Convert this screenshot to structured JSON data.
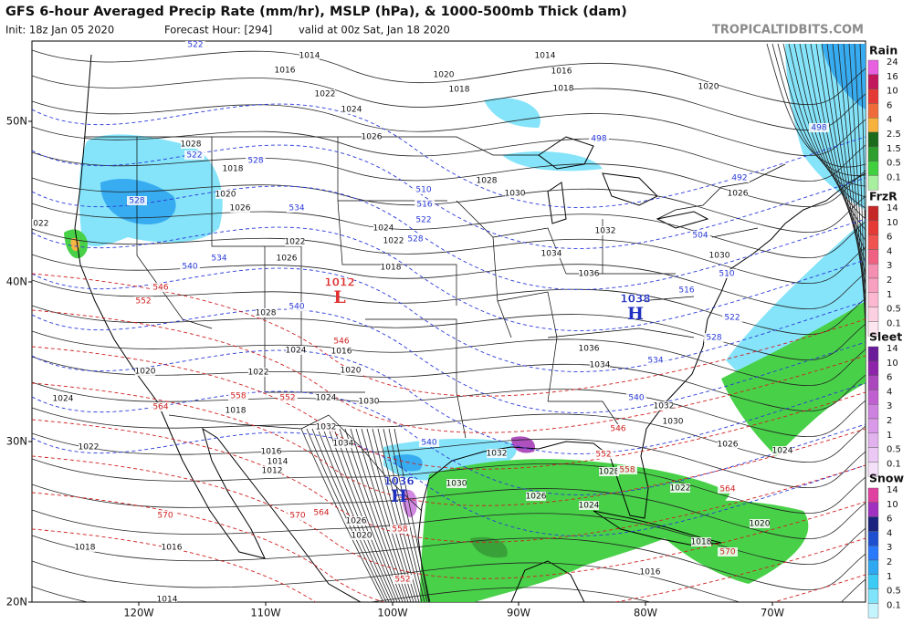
{
  "header": {
    "title": "GFS 6-hour Averaged Precip Rate (mm/hr), MSLP (hPa), & 1000-500mb Thick (dam)",
    "init": "Init: 18z Jan 05 2020",
    "forecast_hour": "Forecast Hour: [294]",
    "valid": "valid at 00z Sat, Jan 18 2020",
    "source": "TROPICALTIDBITS.COM"
  },
  "map": {
    "lat_labels": [
      "50N",
      "40N",
      "30N",
      "20N"
    ],
    "lon_labels": [
      "120W",
      "110W",
      "100W",
      "90W",
      "80W",
      "70W"
    ],
    "centers": [
      {
        "letter": "L",
        "value": "1012",
        "color": "#e03030"
      },
      {
        "letter": "H",
        "value": "1038",
        "color": "#2030c0"
      },
      {
        "letter": "H",
        "value": "1036",
        "color": "#2030c0"
      }
    ],
    "isobar_labels": [
      "1014",
      "1016",
      "1020",
      "1018",
      "1022",
      "1024",
      "1026",
      "1014",
      "1016",
      "1018",
      "1020",
      "1028",
      "1018",
      "1020",
      "1026",
      "1028",
      "1030",
      "1024",
      "1022",
      "1018",
      "1032",
      "1034",
      "1036",
      "1030",
      "1026",
      "1022",
      "1022",
      "1026",
      "1028",
      "1016",
      "1024",
      "1022",
      "1020",
      "1020",
      "1024",
      "1018",
      "1024",
      "1030",
      "1032",
      "1034",
      "1036",
      "1034",
      "1032",
      "1030",
      "1026",
      "1024",
      "1016",
      "1014",
      "1012",
      "1022",
      "1030",
      "1032",
      "1028",
      "1026",
      "1024",
      "1022",
      "1026",
      "1020",
      "1018",
      "1016",
      "1014",
      "1020",
      "1018",
      "1016"
    ],
    "cold_thickness_labels": [
      "522",
      "522",
      "528",
      "528",
      "534",
      "534",
      "540",
      "540",
      "510",
      "516",
      "522",
      "528",
      "498",
      "492",
      "498",
      "504",
      "510",
      "516",
      "522",
      "528",
      "534",
      "540",
      "540"
    ],
    "warm_thickness_labels": [
      "546",
      "552",
      "546",
      "552",
      "558",
      "564",
      "546",
      "552",
      "558",
      "564",
      "570",
      "570",
      "564",
      "558",
      "552",
      "570"
    ]
  },
  "legend": [
    {
      "title": "Rain",
      "levels": [
        "24",
        "16",
        "10",
        "6",
        "4",
        "2.5",
        "1.5",
        "0.5",
        "0.1"
      ],
      "colors": [
        "#e85fe0",
        "#c2185b",
        "#e53935",
        "#ef6c3a",
        "#f6b23a",
        "#1b6b1b",
        "#2e9e2e",
        "#3fcf3f",
        "#a8f0a0"
      ]
    },
    {
      "title": "FrzR",
      "levels": [
        "14",
        "10",
        "6",
        "4",
        "3",
        "2",
        "1",
        "0.5",
        "0.1"
      ],
      "colors": [
        "#c62828",
        "#e53935",
        "#ef5350",
        "#f06080",
        "#f48fb1",
        "#f8a0c0",
        "#fbb8d0",
        "#fcd0e0",
        "#fde6ef"
      ]
    },
    {
      "title": "Sleet",
      "levels": [
        "14",
        "10",
        "6",
        "4",
        "3",
        "2",
        "1",
        "0.5",
        "0.1"
      ],
      "colors": [
        "#6a1b9a",
        "#8e24aa",
        "#ab47bc",
        "#c060d0",
        "#ce82e0",
        "#d89ae8",
        "#e2b2ee",
        "#ecc8f4",
        "#f5e0fa"
      ]
    },
    {
      "title": "Snow",
      "levels": [
        "14",
        "10",
        "6",
        "4",
        "3",
        "2",
        "1",
        "0.5",
        "0.1"
      ],
      "colors": [
        "#e040a0",
        "#a030c0",
        "#1a237e",
        "#1e4fd0",
        "#2979ff",
        "#2ea8f0",
        "#3ccbf5",
        "#7fe3fa",
        "#c4f4fd"
      ]
    }
  ]
}
